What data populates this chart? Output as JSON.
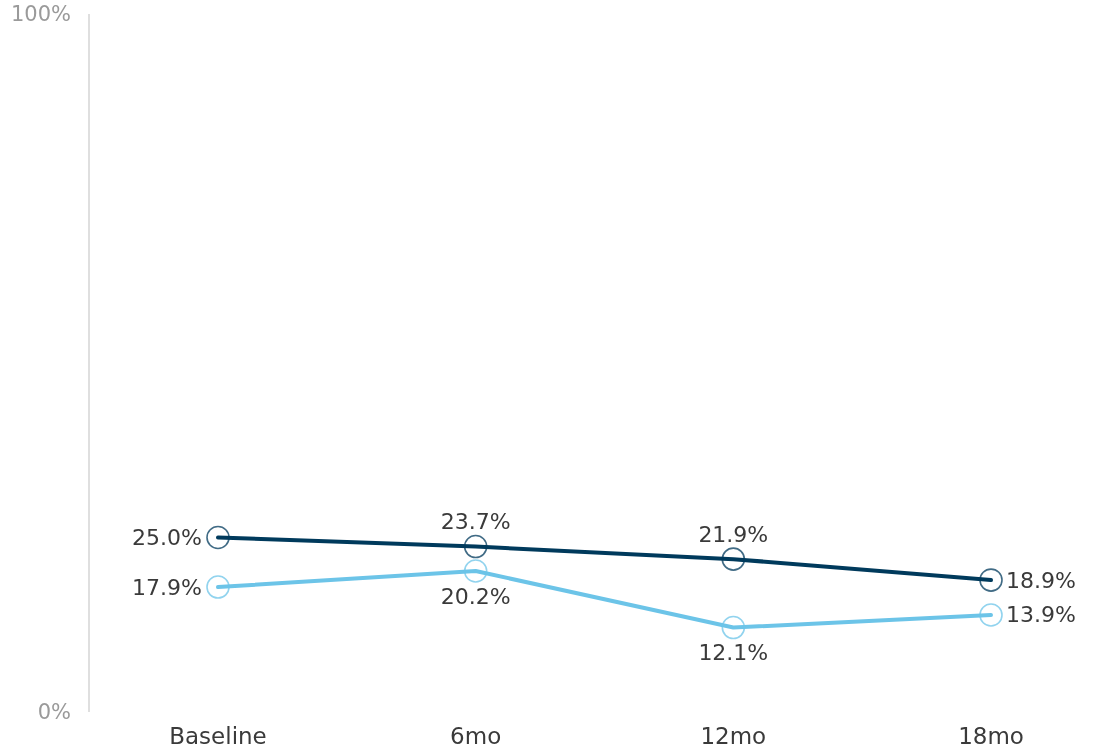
{
  "chart_data": {
    "type": "line",
    "categories": [
      "Baseline",
      "6mo",
      "12mo",
      "18mo"
    ],
    "series": [
      {
        "color": "#003a5c",
        "values": [
          25.0,
          23.7,
          21.9,
          18.9
        ],
        "value_labels": [
          "25.0%",
          "23.7%",
          "21.9%",
          "18.9%"
        ]
      },
      {
        "color": "#6cc4e8",
        "values": [
          17.9,
          20.2,
          12.1,
          13.9
        ],
        "value_labels": [
          "17.9%",
          "20.2%",
          "12.1%",
          "13.9%"
        ]
      }
    ],
    "ylim": [
      0,
      100
    ],
    "yticks": [
      {
        "value": 0,
        "label": "0%"
      },
      {
        "value": 100,
        "label": "100%"
      }
    ],
    "marker": "circle",
    "line_style": "solid"
  }
}
